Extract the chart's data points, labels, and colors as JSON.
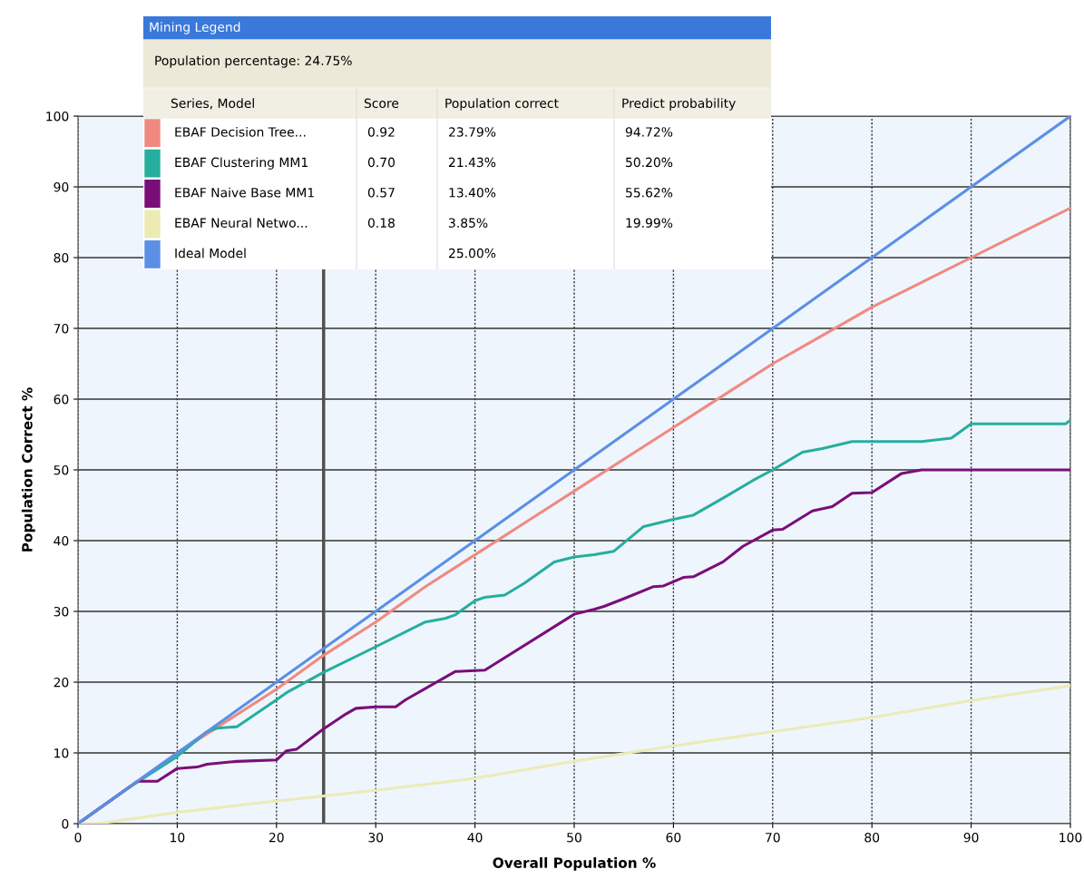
{
  "chart_data": {
    "type": "line",
    "xlabel": "Overall Population %",
    "ylabel": "Population Correct %",
    "xlim": [
      0,
      100
    ],
    "ylim": [
      0,
      100
    ],
    "xticks": [
      0,
      10,
      20,
      30,
      40,
      50,
      60,
      70,
      80,
      90,
      100
    ],
    "yticks": [
      0,
      10,
      20,
      30,
      40,
      50,
      60,
      70,
      80,
      90,
      100
    ],
    "grid": true,
    "legend": "top left",
    "legend_title": "Mining Legend",
    "marker": "none",
    "line_style": "solid",
    "subtitle": "Population percentage: 24.75%",
    "ref_lines": [
      {
        "axis": "x",
        "value": 24.75,
        "color": "#505050"
      }
    ],
    "annotations": [
      "Series, Model",
      "Score",
      "Population correct",
      "Predict probability",
      "0.92",
      "23.79%",
      "94.72%",
      "0.70",
      "21.43%",
      "50.20%",
      "0.57",
      "13.40%",
      "55.62%",
      "0.18",
      "3.85%",
      "19.99%",
      "25.00%"
    ],
    "series": [
      {
        "name": "EBAF Decision Tree...",
        "color": "#f08a80",
        "x": [
          0,
          5,
          10,
          15,
          20,
          24.75,
          30,
          35,
          40,
          45,
          50,
          55,
          60,
          65,
          70,
          75,
          80,
          85,
          90,
          95,
          100
        ],
        "values": [
          0,
          5,
          10,
          14.5,
          19,
          23.8,
          28.5,
          33.5,
          38,
          42.5,
          47,
          51.5,
          56,
          60.5,
          65,
          69,
          73,
          76.5,
          80,
          83.5,
          87
        ]
      },
      {
        "name": "EBAF Clustering MM1",
        "color": "#26ae9e",
        "x": [
          0,
          5,
          10,
          13,
          14,
          16,
          20,
          21,
          24.75,
          30,
          35,
          37,
          38,
          40,
          41,
          43,
          45,
          48,
          50,
          52,
          54,
          57,
          60,
          62,
          65,
          68,
          70,
          73,
          75,
          78,
          85,
          88,
          90,
          99.5,
          100
        ],
        "values": [
          0,
          5,
          9.5,
          13,
          13.5,
          13.7,
          17.5,
          18.5,
          21.4,
          25,
          28.5,
          29,
          29.5,
          31.5,
          32,
          32.3,
          34,
          37,
          37.7,
          38,
          38.5,
          42,
          43,
          43.6,
          46,
          48.5,
          50,
          52.5,
          53,
          54,
          54,
          54.5,
          56.5,
          56.5,
          57
        ]
      },
      {
        "name": "EBAF Naive Base MM1",
        "color": "#7a0e78",
        "x": [
          0,
          6,
          8,
          10,
          12,
          13,
          16,
          20,
          21,
          22,
          24.75,
          27,
          28,
          30,
          32,
          33,
          38,
          41,
          50,
          52,
          53,
          55,
          58,
          59,
          61,
          62,
          65,
          67,
          70,
          71,
          74,
          76,
          78,
          80,
          83,
          85,
          100
        ],
        "values": [
          0,
          6,
          6,
          7.8,
          8,
          8.4,
          8.8,
          9,
          10.3,
          10.5,
          13.4,
          15.5,
          16.3,
          16.5,
          16.5,
          17.5,
          21.5,
          21.7,
          29.6,
          30.3,
          30.7,
          31.8,
          33.5,
          33.6,
          34.8,
          34.9,
          37,
          39.2,
          41.5,
          41.6,
          44.2,
          44.8,
          46.7,
          46.8,
          49.5,
          50,
          50
        ]
      },
      {
        "name": "EBAF Neural Netwo...",
        "color": "#ecebb4",
        "x": [
          0,
          2,
          10,
          20,
          24.75,
          30,
          40,
          50,
          60,
          70,
          80,
          90,
          100
        ],
        "values": [
          0,
          0,
          1.6,
          3.2,
          3.9,
          4.7,
          6.4,
          8.8,
          11,
          13,
          15,
          17.4,
          19.5
        ]
      },
      {
        "name": "Ideal Model",
        "color": "#5b8fe6",
        "x": [
          0,
          100
        ],
        "values": [
          0,
          100
        ]
      }
    ]
  }
}
